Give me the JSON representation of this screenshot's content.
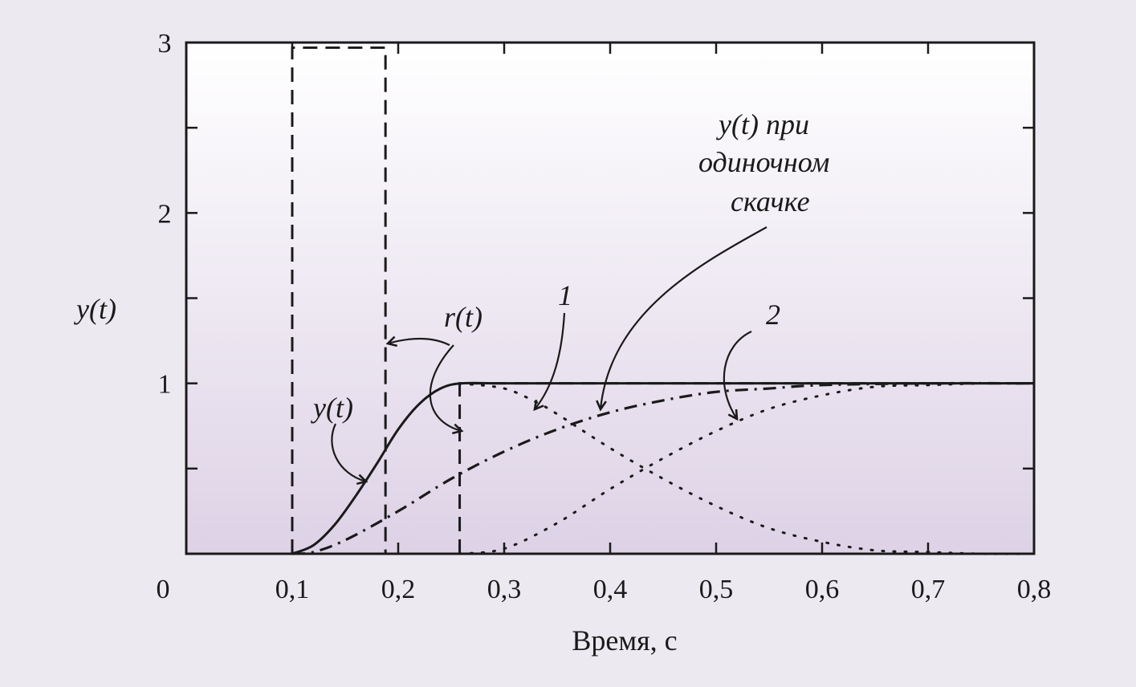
{
  "chart_data": {
    "type": "line",
    "title": "",
    "xlabel": "Время, с",
    "ylabel": "y(t)",
    "xlim": [
      0,
      0.8
    ],
    "ylim": [
      0,
      3
    ],
    "grid": false,
    "x_ticks": [
      {
        "v": 0,
        "label": "0"
      },
      {
        "v": 0.1,
        "label": "0,1"
      },
      {
        "v": 0.2,
        "label": "0,2"
      },
      {
        "v": 0.3,
        "label": "0,3"
      },
      {
        "v": 0.4,
        "label": "0,4"
      },
      {
        "v": 0.5,
        "label": "0,5"
      },
      {
        "v": 0.6,
        "label": "0,6"
      },
      {
        "v": 0.7,
        "label": "0,7"
      },
      {
        "v": 0.8,
        "label": "0,8"
      }
    ],
    "y_ticks": [
      {
        "v": 0,
        "label": ""
      },
      {
        "v": 0.5,
        "label": ""
      },
      {
        "v": 1,
        "label": "1"
      },
      {
        "v": 1.5,
        "label": ""
      },
      {
        "v": 2,
        "label": "2"
      },
      {
        "v": 2.5,
        "label": ""
      },
      {
        "v": 3,
        "label": "3"
      }
    ],
    "series": [
      {
        "key": "r",
        "name": "r(t)",
        "style": "dashed",
        "x": [
          0.1,
          0.1,
          0.188,
          0.188,
          0.258,
          0.258,
          0.8
        ],
        "y": [
          0,
          2.97,
          2.97,
          1.0,
          1.0,
          0,
          1.0
        ],
        "path": [
          [
            0.1,
            0
          ],
          [
            0.1,
            2.97
          ],
          [
            0.188,
            2.97
          ],
          [
            0.188,
            0
          ]
        ],
        "path2": [
          [
            0.258,
            0
          ],
          [
            0.258,
            1.0
          ],
          [
            0.8,
            1.0
          ]
        ]
      },
      {
        "key": "y",
        "name": "y(t)",
        "style": "solid",
        "x": [
          0.1,
          0.12,
          0.14,
          0.16,
          0.18,
          0.2,
          0.22,
          0.24,
          0.26,
          0.3,
          0.4,
          0.5,
          0.6,
          0.7,
          0.8
        ],
        "y": [
          0,
          0.05,
          0.17,
          0.34,
          0.53,
          0.73,
          0.88,
          0.97,
          1.0,
          1.0,
          1.0,
          1.0,
          1.0,
          1.0,
          1.0
        ]
      },
      {
        "key": "single",
        "name": "y(t) при одиночном скачке",
        "style": "dashdot",
        "x": [
          0.1,
          0.12,
          0.15,
          0.2,
          0.25,
          0.3,
          0.35,
          0.4,
          0.45,
          0.5,
          0.55,
          0.6,
          0.7,
          0.8
        ],
        "y": [
          0,
          0.01,
          0.08,
          0.25,
          0.44,
          0.6,
          0.73,
          0.83,
          0.9,
          0.95,
          0.97,
          0.99,
          1.0,
          1.0
        ]
      },
      {
        "key": "c1",
        "name": "1",
        "style": "dotted",
        "x": [
          0.258,
          0.3,
          0.33,
          0.35,
          0.4,
          0.45,
          0.5,
          0.55,
          0.6,
          0.65,
          0.7,
          0.75,
          0.8
        ],
        "y": [
          1.0,
          0.97,
          0.89,
          0.82,
          0.62,
          0.44,
          0.28,
          0.15,
          0.07,
          0.02,
          0.01,
          0.0,
          0.0
        ]
      },
      {
        "key": "c2",
        "name": "2",
        "style": "dotted",
        "x": [
          0.258,
          0.3,
          0.35,
          0.4,
          0.45,
          0.5,
          0.55,
          0.6,
          0.65,
          0.7,
          0.75,
          0.8
        ],
        "y": [
          0,
          0.03,
          0.18,
          0.38,
          0.56,
          0.72,
          0.85,
          0.93,
          0.98,
          0.99,
          1.0,
          1.0
        ]
      }
    ],
    "annotations": [
      {
        "key": "ann-r",
        "text": "r(t)"
      },
      {
        "key": "ann-y",
        "text": "y(t)"
      },
      {
        "key": "ann-1",
        "text": "1"
      },
      {
        "key": "ann-2",
        "text": "2"
      },
      {
        "key": "ann-single",
        "lines": [
          "y(t) при",
          "одиночном",
          "скачке"
        ]
      }
    ],
    "colors": {
      "bg_top": "#ffffff",
      "bg_bottom": "#ddd2e6",
      "page_bg": "#ece9f1",
      "ink": "#1a1a1a"
    }
  }
}
